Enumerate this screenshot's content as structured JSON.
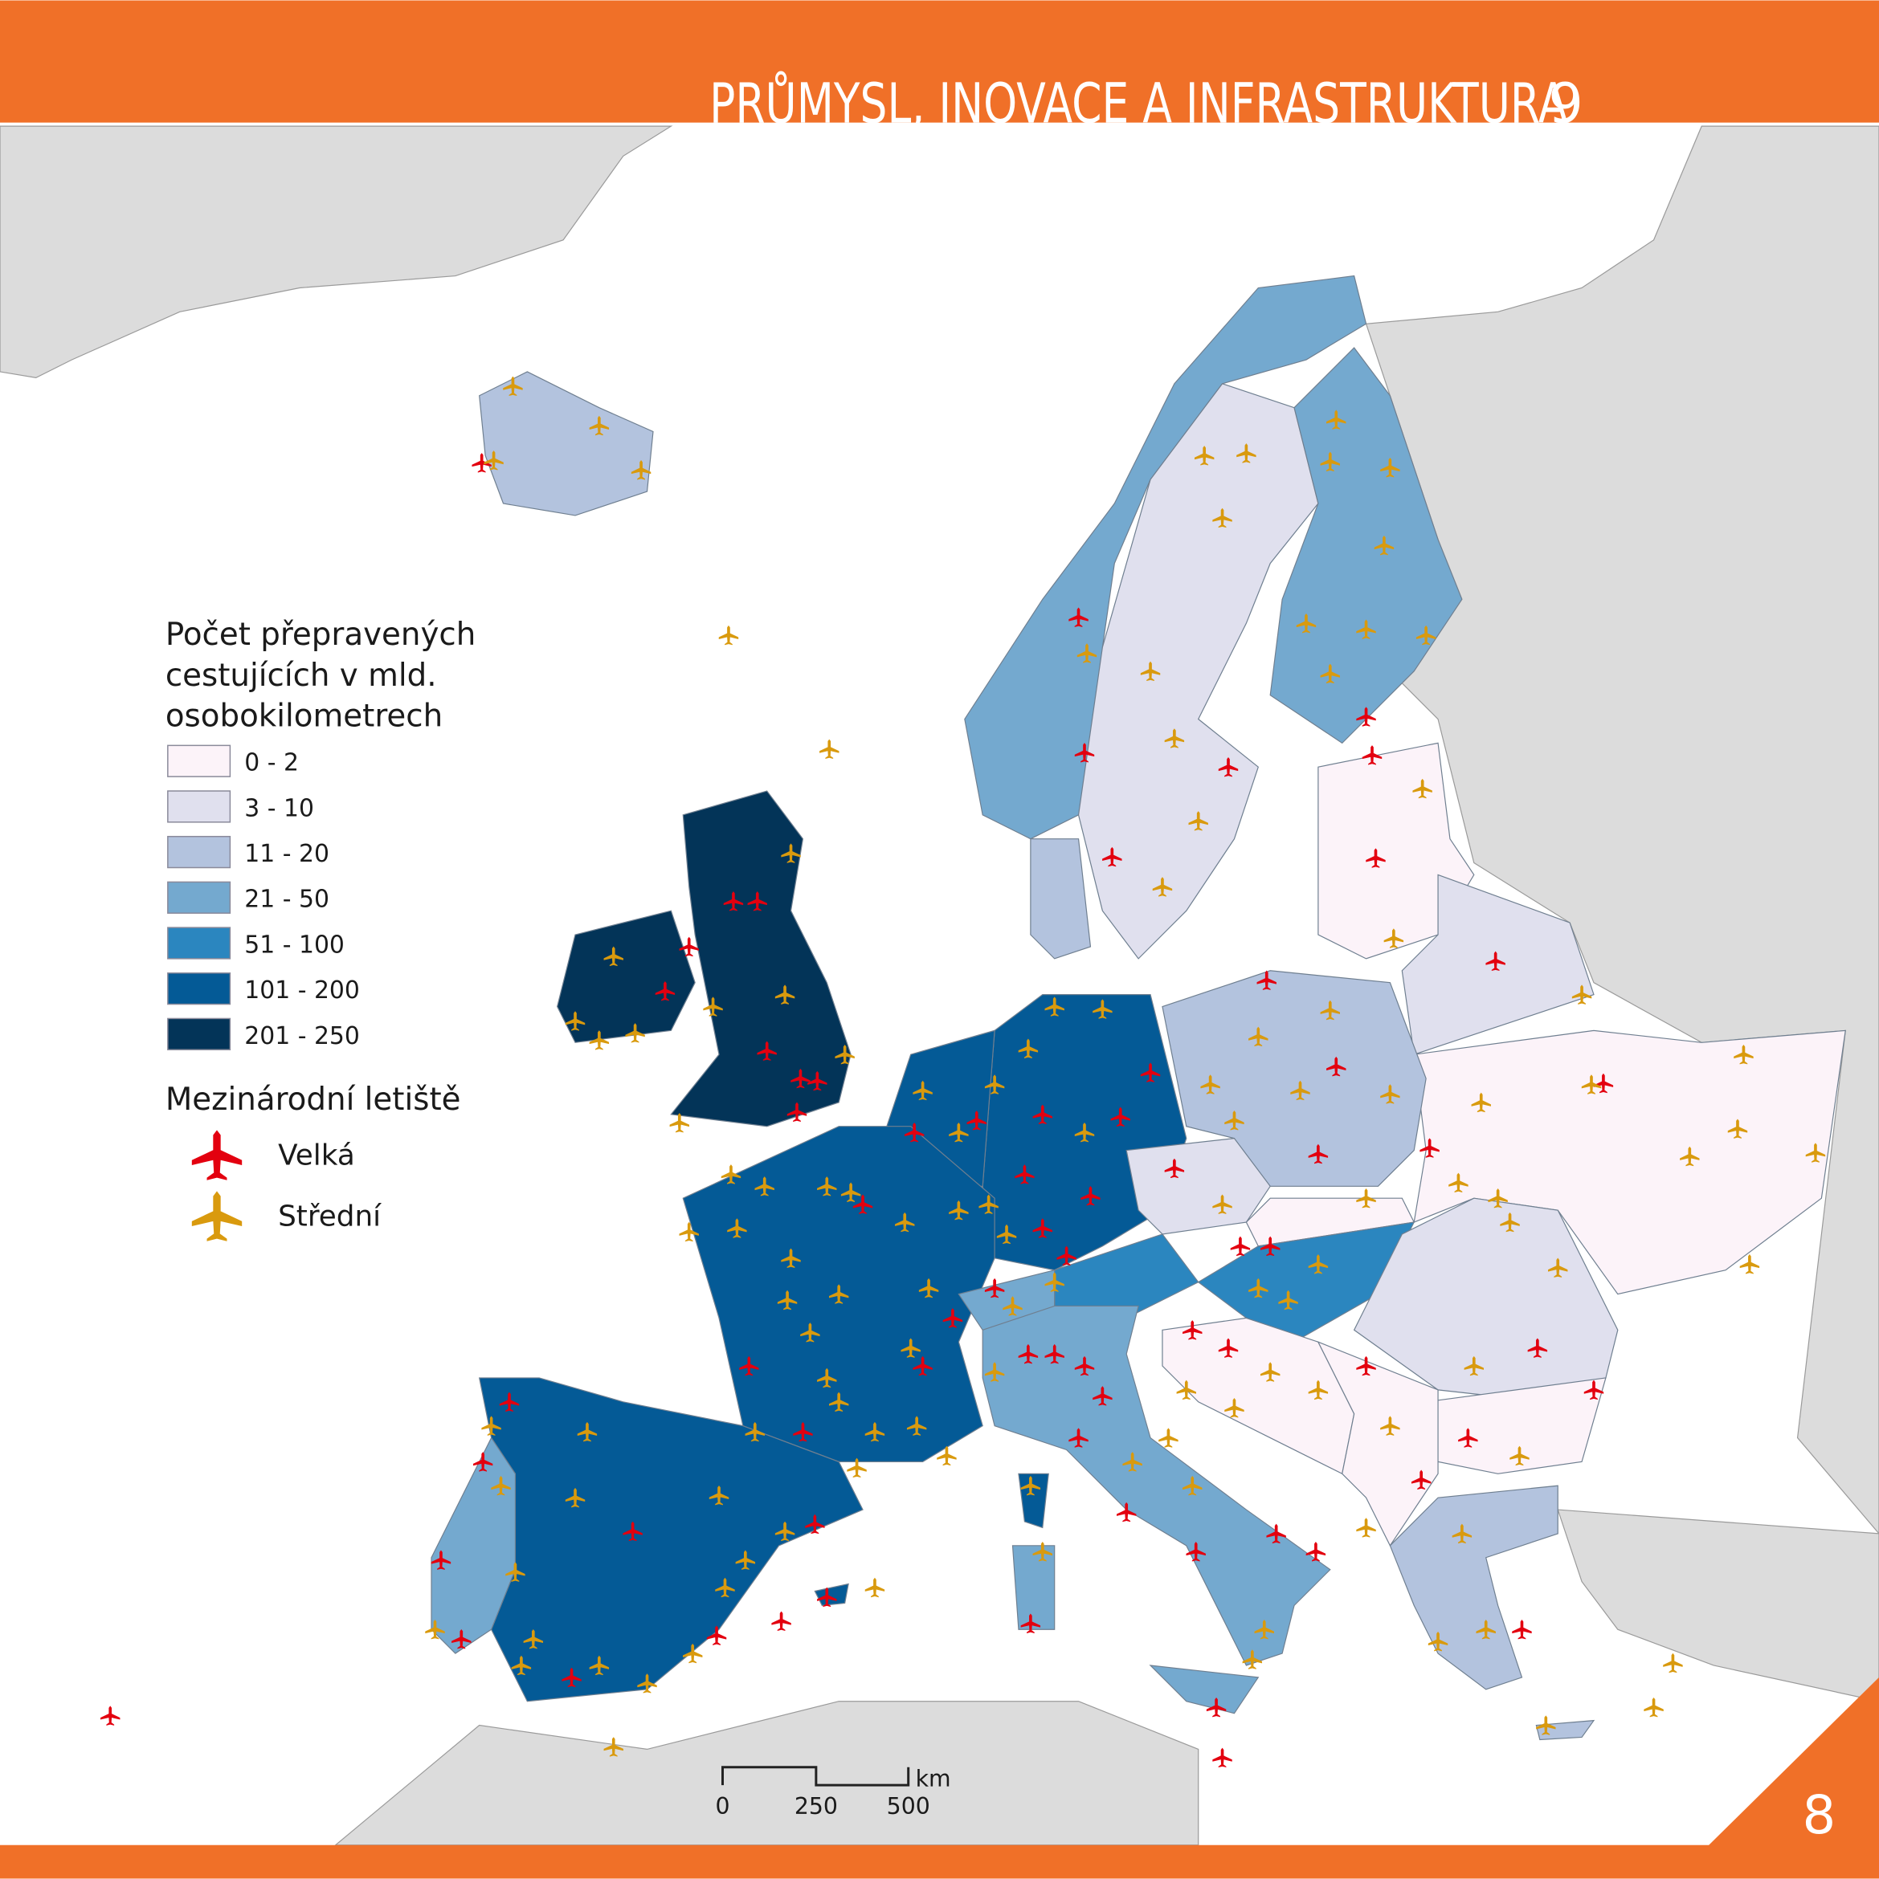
{
  "header": {
    "title": "PRŮMYSL, INOVACE A INFRASTRUKTURA",
    "chapter": "9"
  },
  "page_number": "8",
  "legend": {
    "title_lines": [
      "Počet přepravených",
      "cestujících v mld.",
      "osobokilometrech"
    ],
    "classes": [
      {
        "label": "0 - 2",
        "color": "#fcf3f9"
      },
      {
        "label": "3 - 10",
        "color": "#e0e0ee"
      },
      {
        "label": "11 - 20",
        "color": "#b3c3de"
      },
      {
        "label": "21 - 50",
        "color": "#74a9cf"
      },
      {
        "label": "51 - 100",
        "color": "#2b86bf"
      },
      {
        "label": "101 - 200",
        "color": "#045a96"
      },
      {
        "label": "201 - 250",
        "color": "#033458"
      }
    ],
    "airports_title": "Mezinárodní letiště",
    "airports": [
      {
        "label": "Velká",
        "color": "#e3000f"
      },
      {
        "label": "Střední",
        "color": "#d99a0e"
      }
    ]
  },
  "scale_bar": {
    "unit": "km",
    "labels": [
      "0",
      "250",
      "500"
    ]
  }
}
